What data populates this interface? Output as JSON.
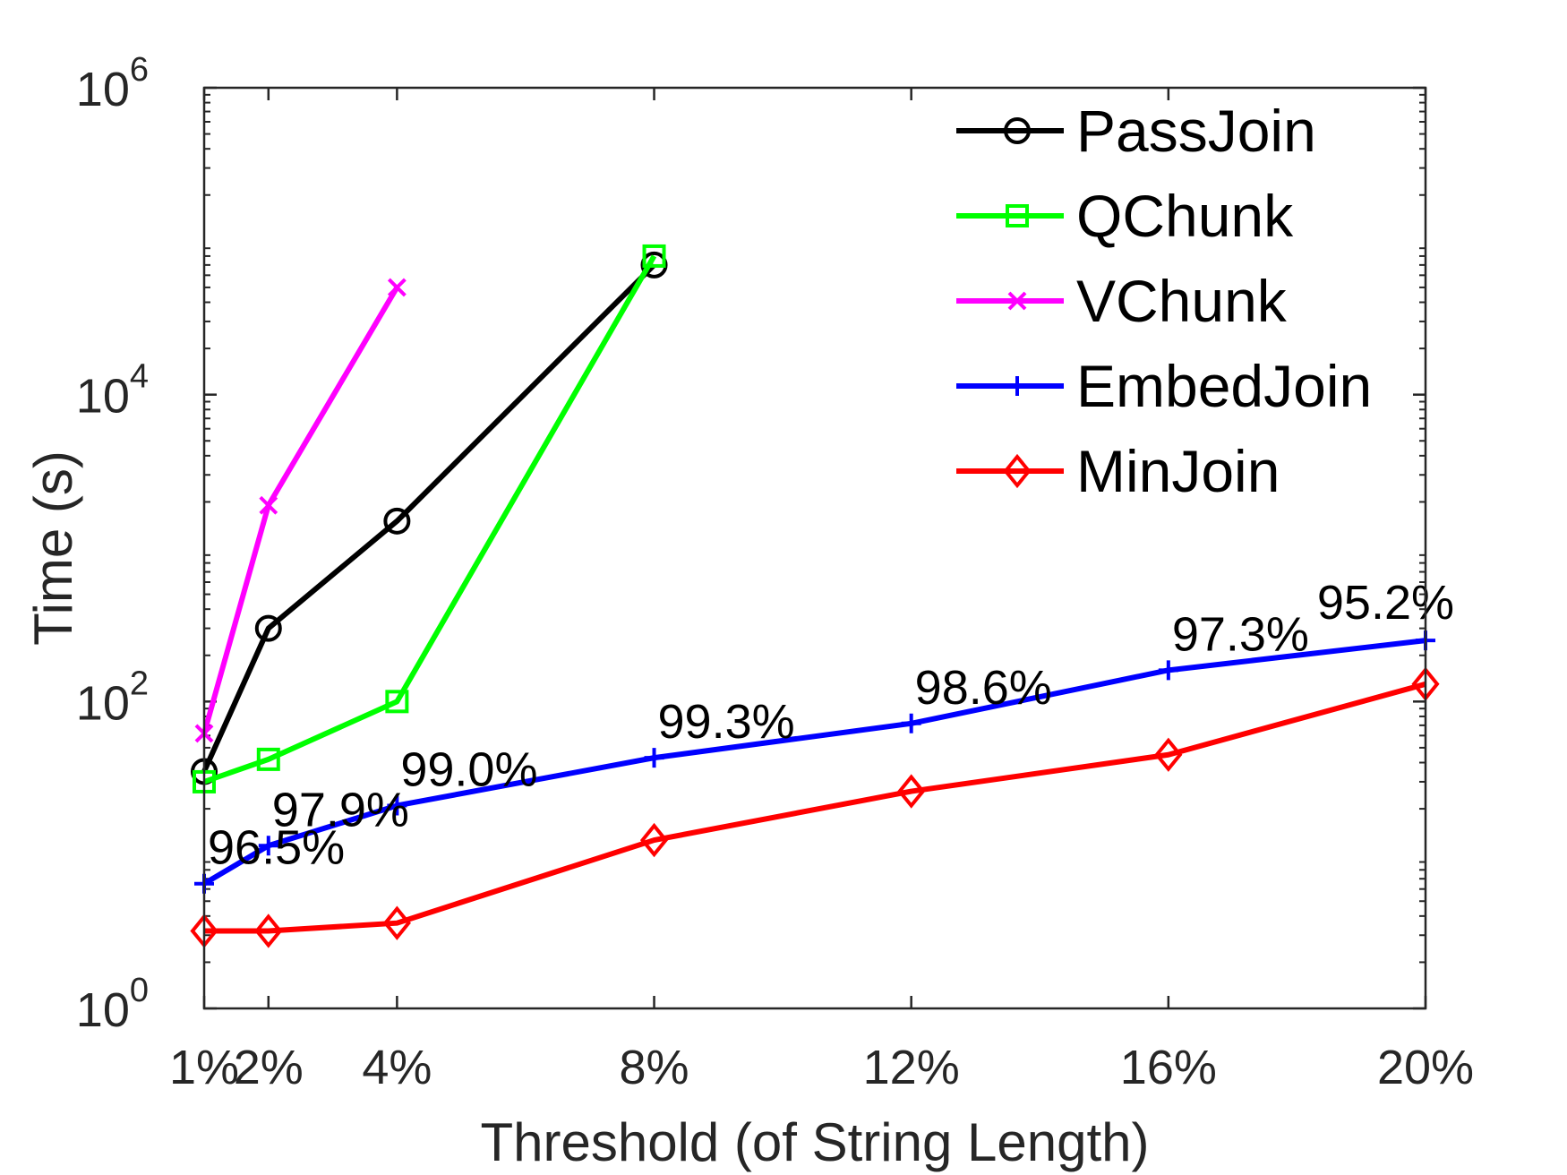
{
  "chart_data": {
    "type": "line",
    "title": "",
    "xlabel": "Threshold (of String Length)",
    "ylabel": "Time (s)",
    "yscale": "log",
    "ylim": [
      1,
      1000000
    ],
    "xlim": [
      1,
      20
    ],
    "x_ticks": [
      {
        "value": 1,
        "label": "1%"
      },
      {
        "value": 2,
        "label": "2%"
      },
      {
        "value": 4,
        "label": "4%"
      },
      {
        "value": 8,
        "label": "8%"
      },
      {
        "value": 12,
        "label": "12%"
      },
      {
        "value": 16,
        "label": "16%"
      },
      {
        "value": 20,
        "label": "20%"
      }
    ],
    "y_ticks": [
      {
        "value": 1,
        "base": "10",
        "exp": "0"
      },
      {
        "value": 100,
        "base": "10",
        "exp": "2"
      },
      {
        "value": 10000,
        "base": "10",
        "exp": "4"
      },
      {
        "value": 1000000,
        "base": "10",
        "exp": "6"
      }
    ],
    "legend_position": "top-right",
    "series": [
      {
        "name": "PassJoin",
        "color": "#000000",
        "marker": "circle",
        "points": [
          [
            1,
            35
          ],
          [
            2,
            300
          ],
          [
            4,
            1500
          ],
          [
            8,
            70000
          ]
        ]
      },
      {
        "name": "QChunk",
        "color": "#00ff00",
        "marker": "square",
        "points": [
          [
            1,
            30
          ],
          [
            2,
            42
          ],
          [
            4,
            100
          ],
          [
            8,
            80000
          ]
        ]
      },
      {
        "name": "VChunk",
        "color": "#ff00ff",
        "marker": "x",
        "points": [
          [
            1,
            62
          ],
          [
            2,
            1900
          ],
          [
            4,
            50000
          ]
        ]
      },
      {
        "name": "EmbedJoin",
        "color": "#0000ff",
        "marker": "plus",
        "points": [
          [
            1,
            6.5
          ],
          [
            2,
            11.5
          ],
          [
            4,
            21
          ],
          [
            8,
            43
          ],
          [
            12,
            72
          ],
          [
            16,
            160
          ],
          [
            20,
            250
          ]
        ]
      },
      {
        "name": "MinJoin",
        "color": "#ff0000",
        "marker": "diamond",
        "points": [
          [
            1,
            3.2
          ],
          [
            2,
            3.2
          ],
          [
            4,
            3.6
          ],
          [
            8,
            12.5
          ],
          [
            12,
            26
          ],
          [
            16,
            45
          ],
          [
            20,
            130
          ]
        ]
      }
    ],
    "annotations": [
      {
        "x": 1,
        "y": 6.5,
        "text": "96.5%"
      },
      {
        "x": 2,
        "y": 11.5,
        "text": "97.9%"
      },
      {
        "x": 4,
        "y": 21,
        "text": "99.0%"
      },
      {
        "x": 8,
        "y": 43,
        "text": "99.3%"
      },
      {
        "x": 12,
        "y": 72,
        "text": "98.6%"
      },
      {
        "x": 16,
        "y": 160,
        "text": "97.3%"
      },
      {
        "x": 20,
        "y": 250,
        "text": "95.2%"
      }
    ]
  }
}
